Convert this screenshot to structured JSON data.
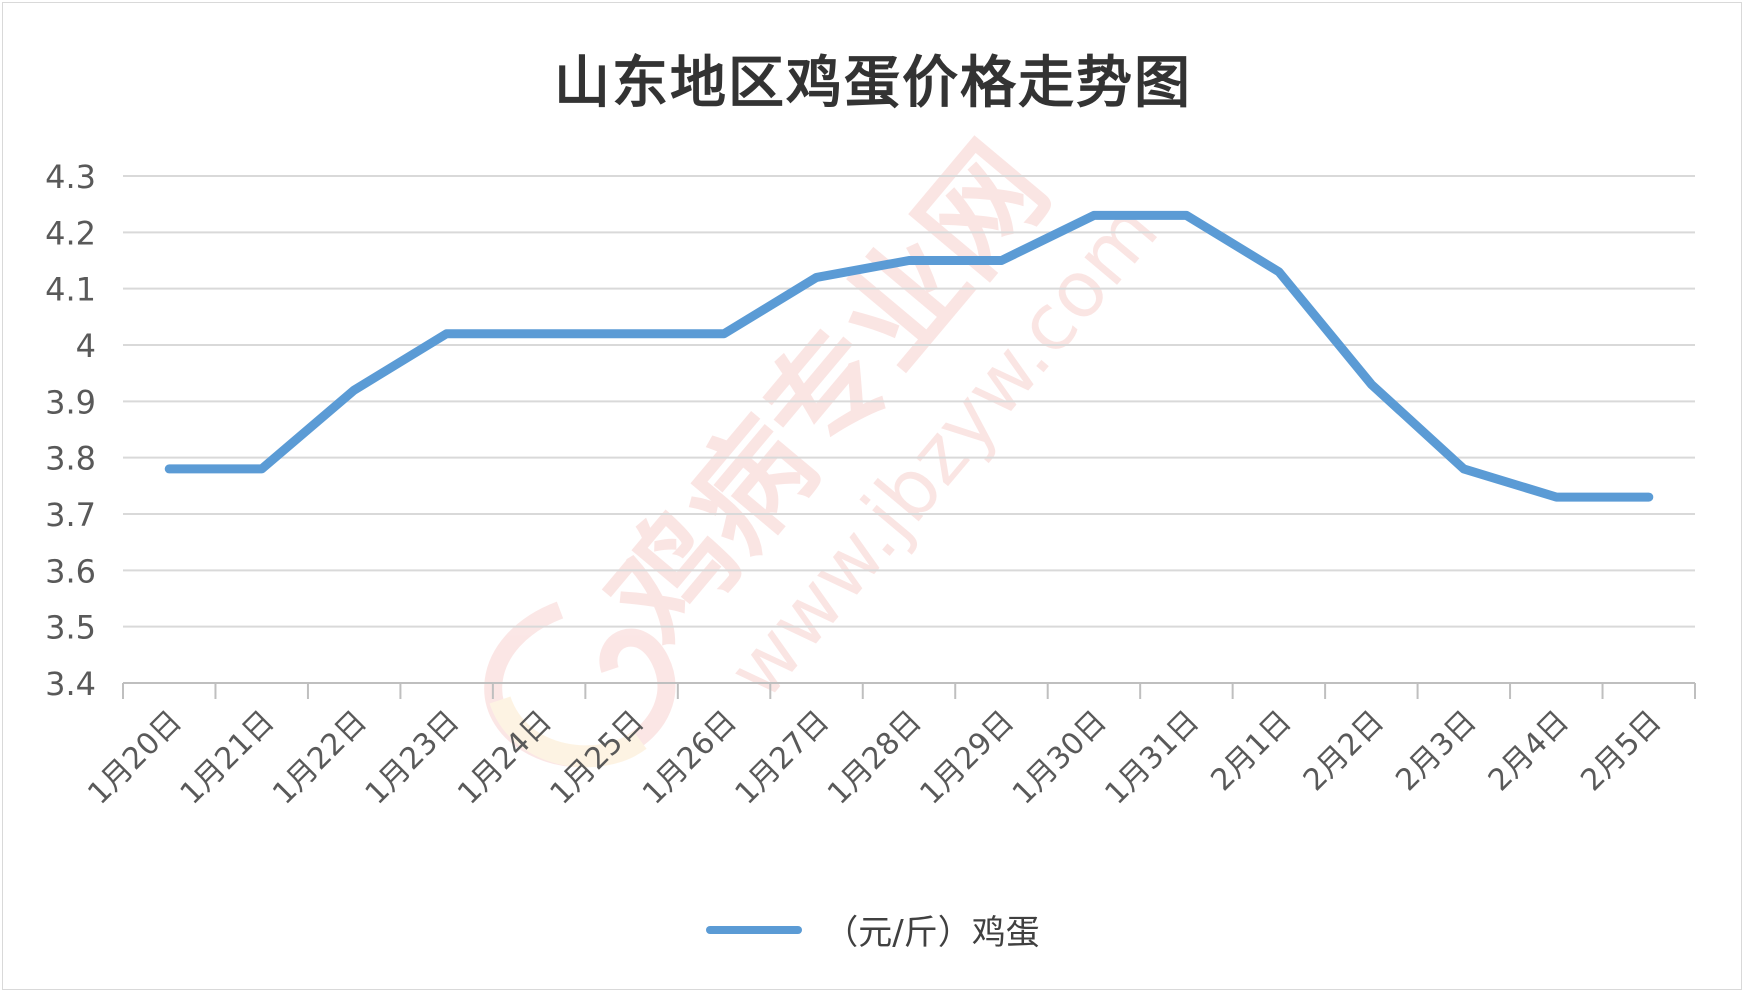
{
  "chart_data": {
    "type": "line",
    "title": "山东地区鸡蛋价格走势图",
    "categories": [
      "1月20日",
      "1月21日",
      "1月22日",
      "1月23日",
      "1月24日",
      "1月25日",
      "1月26日",
      "1月27日",
      "1月28日",
      "1月29日",
      "1月30日",
      "1月31日",
      "2月1日",
      "2月2日",
      "2月3日",
      "2月4日",
      "2月5日"
    ],
    "series": [
      {
        "name": "（元/斤）鸡蛋",
        "values": [
          3.78,
          3.78,
          3.92,
          4.02,
          4.02,
          4.02,
          4.02,
          4.12,
          4.15,
          4.15,
          4.23,
          4.23,
          4.13,
          3.93,
          3.78,
          3.73,
          3.73
        ]
      }
    ],
    "yticks": [
      "3.4",
      "3.5",
      "3.6",
      "3.7",
      "3.8",
      "3.9",
      "4",
      "4.1",
      "4.2",
      "4.3"
    ],
    "ylim": [
      3.4,
      4.3
    ],
    "grid": true,
    "legend_position": "bottom",
    "colors": {
      "line": "#5b9bd5",
      "grid": "#d9d9d9",
      "axis": "#bfbfbf",
      "text": "#595959"
    }
  },
  "watermark": {
    "text": "鸡病专业网",
    "url": "www.jbzyw.com"
  }
}
